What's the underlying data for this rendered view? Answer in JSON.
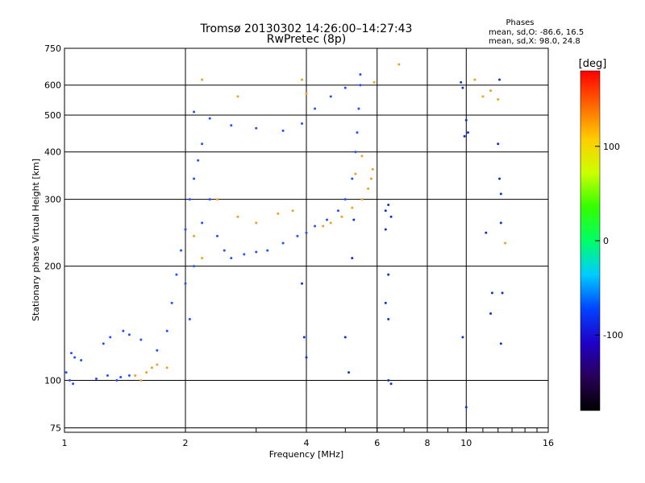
{
  "chart_data": {
    "type": "scatter",
    "title": "Tromsø 20130302 14:26:00–14:27:43",
    "subtitle": "RwPretec (8p)",
    "xlabel": "Frequency [MHz]",
    "ylabel": "Stationary phase Virtual Height [km]",
    "x_scale": "log",
    "y_scale": "log",
    "xlim": [
      1,
      16
    ],
    "ylim": [
      73,
      750
    ],
    "x_ticks": [
      1,
      2,
      4,
      6,
      8,
      10,
      16
    ],
    "y_ticks": [
      75,
      100,
      200,
      300,
      400,
      500,
      600,
      750
    ],
    "grid": true,
    "stats": {
      "header": "Phases",
      "line1": "mean, sd,O: -86.6, 16.5",
      "line2": "mean, sd,X:  98.0, 24.8"
    },
    "colorbar": {
      "label": "[deg]",
      "range": [
        -180,
        180
      ],
      "ticks": [
        100,
        0,
        -100
      ],
      "tick_labels": [
        "100",
        "0",
        "-100"
      ],
      "colormap": [
        "#000000",
        "#2a0058",
        "#1f00c8",
        "#0044ff",
        "#00ccff",
        "#00ff66",
        "#33ff00",
        "#ccff00",
        "#ffcc00",
        "#ff6600",
        "#ff0000"
      ]
    },
    "series": [
      {
        "values": [
          [
            1.01,
            105
          ],
          [
            1.03,
            100
          ],
          [
            1.05,
            98
          ],
          [
            1.04,
            118
          ],
          [
            1.06,
            115
          ],
          [
            1.1,
            113
          ],
          [
            1.2,
            101
          ],
          [
            1.28,
            103
          ],
          [
            1.35,
            100
          ],
          [
            1.38,
            102
          ],
          [
            1.45,
            103
          ],
          [
            1.25,
            125
          ],
          [
            1.3,
            130
          ],
          [
            1.4,
            135
          ],
          [
            1.45,
            132
          ],
          [
            1.55,
            128
          ],
          [
            1.7,
            120
          ],
          [
            1.8,
            135
          ],
          [
            1.85,
            160
          ],
          [
            1.9,
            190
          ],
          [
            1.95,
            220
          ],
          [
            2.0,
            250
          ],
          [
            2.0,
            180
          ],
          [
            2.05,
            300
          ],
          [
            2.1,
            340
          ],
          [
            2.15,
            380
          ],
          [
            2.2,
            420
          ],
          [
            2.05,
            145
          ],
          [
            2.1,
            200
          ],
          [
            2.2,
            260
          ],
          [
            2.3,
            300
          ],
          [
            2.4,
            240
          ],
          [
            2.5,
            220
          ],
          [
            2.6,
            210
          ],
          [
            2.8,
            215
          ],
          [
            3.0,
            218
          ],
          [
            3.2,
            220
          ],
          [
            3.5,
            230
          ],
          [
            3.8,
            240
          ],
          [
            4.0,
            245
          ],
          [
            4.2,
            255
          ],
          [
            4.5,
            265
          ],
          [
            4.8,
            280
          ],
          [
            5.0,
            300
          ],
          [
            5.2,
            340
          ],
          [
            5.3,
            400
          ],
          [
            5.35,
            450
          ],
          [
            5.4,
            520
          ],
          [
            5.45,
            600
          ],
          [
            5.45,
            640
          ],
          [
            2.1,
            510
          ],
          [
            2.3,
            490
          ],
          [
            2.6,
            470
          ],
          [
            3.0,
            462
          ],
          [
            3.5,
            455
          ],
          [
            3.9,
            475
          ],
          [
            4.2,
            520
          ],
          [
            4.6,
            560
          ],
          [
            5.0,
            590
          ]
        ]
      },
      {
        "values": [
          [
            1.5,
            103
          ],
          [
            1.55,
            100
          ],
          [
            1.6,
            105
          ],
          [
            1.65,
            108
          ],
          [
            1.7,
            110
          ],
          [
            1.8,
            108
          ],
          [
            2.1,
            240
          ],
          [
            2.2,
            210
          ],
          [
            2.4,
            300
          ],
          [
            2.7,
            270
          ],
          [
            3.0,
            260
          ],
          [
            3.4,
            275
          ],
          [
            3.7,
            280
          ],
          [
            4.4,
            255
          ],
          [
            4.6,
            260
          ],
          [
            4.9,
            270
          ],
          [
            5.2,
            285
          ],
          [
            5.5,
            300
          ],
          [
            5.7,
            320
          ],
          [
            5.8,
            340
          ],
          [
            5.85,
            360
          ],
          [
            5.5,
            390
          ],
          [
            5.3,
            350
          ],
          [
            2.2,
            620
          ],
          [
            2.7,
            560
          ],
          [
            3.9,
            620
          ],
          [
            4.0,
            570
          ],
          [
            5.9,
            610
          ],
          [
            6.8,
            680
          ],
          [
            10.5,
            620
          ],
          [
            11.0,
            560
          ],
          [
            11.5,
            580
          ],
          [
            12.0,
            550
          ],
          [
            12.5,
            230
          ]
        ]
      },
      {
        "values": [
          [
            6.3,
            280
          ],
          [
            6.4,
            290
          ],
          [
            6.3,
            250
          ],
          [
            6.5,
            270
          ],
          [
            6.4,
            190
          ],
          [
            6.3,
            160
          ],
          [
            6.4,
            145
          ],
          [
            6.4,
            100
          ],
          [
            6.5,
            98
          ],
          [
            9.8,
            130
          ],
          [
            9.9,
            440
          ],
          [
            10.0,
            485
          ],
          [
            10.1,
            450
          ],
          [
            10.0,
            85
          ],
          [
            11.2,
            245
          ],
          [
            11.5,
            150
          ],
          [
            11.6,
            170
          ],
          [
            12.0,
            420
          ],
          [
            12.1,
            340
          ],
          [
            12.2,
            310
          ],
          [
            12.2,
            260
          ],
          [
            12.3,
            170
          ],
          [
            12.2,
            125
          ],
          [
            5.2,
            210
          ],
          [
            5.25,
            265
          ],
          [
            3.9,
            180
          ],
          [
            3.95,
            130
          ],
          [
            4.0,
            115
          ],
          [
            5.0,
            130
          ],
          [
            5.1,
            105
          ],
          [
            9.7,
            610
          ],
          [
            9.8,
            590
          ],
          [
            12.1,
            620
          ]
        ]
      }
    ]
  }
}
